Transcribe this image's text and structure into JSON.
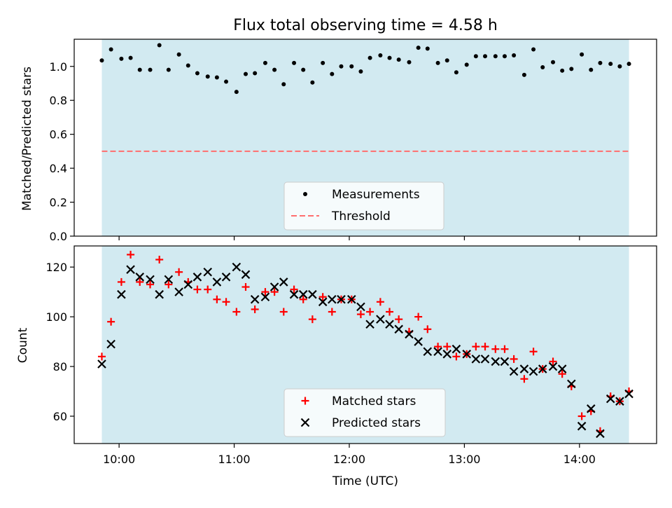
{
  "title": "Flux total observing time = 4.58 h",
  "colors": {
    "band": "#add8e6",
    "measurement": "#000000",
    "threshold": "#ff6e6e",
    "matched": "#ff0000",
    "predicted": "#000000"
  },
  "chart_data": [
    {
      "type": "scatter",
      "panel": "top",
      "ylabel": "Matched/Predicted stars",
      "xlabel": "",
      "ylim": [
        0,
        1.16
      ],
      "yticks": [
        0.0,
        0.2,
        0.4,
        0.6,
        0.8,
        1.0
      ],
      "ytick_labels": [
        "0.0",
        "0.2",
        "0.4",
        "0.6",
        "0.8",
        "1.0"
      ],
      "xlim_hours": [
        9.61,
        14.67
      ],
      "shaded_span_hours": [
        9.85,
        14.43
      ],
      "legend": {
        "placement": "lower-center",
        "entries": [
          {
            "label": "Measurements",
            "marker": "dot"
          },
          {
            "label": "Threshold",
            "marker": "dashed-line"
          }
        ]
      },
      "threshold": 0.5,
      "series": [
        {
          "name": "Measurements",
          "x": [
            9.85,
            9.93,
            10.02,
            10.1,
            10.18,
            10.27,
            10.35,
            10.43,
            10.52,
            10.6,
            10.68,
            10.77,
            10.85,
            10.93,
            11.02,
            11.1,
            11.18,
            11.27,
            11.35,
            11.43,
            11.52,
            11.6,
            11.68,
            11.77,
            11.85,
            11.93,
            12.02,
            12.1,
            12.18,
            12.27,
            12.35,
            12.43,
            12.52,
            12.6,
            12.68,
            12.77,
            12.85,
            12.93,
            13.02,
            13.1,
            13.18,
            13.27,
            13.35,
            13.43,
            13.52,
            13.6,
            13.68,
            13.77,
            13.85,
            13.93,
            14.02,
            14.1,
            14.18,
            14.27,
            14.35,
            14.43
          ],
          "values": [
            1.035,
            1.1,
            1.045,
            1.05,
            0.98,
            0.98,
            1.125,
            0.98,
            1.07,
            1.005,
            0.96,
            0.94,
            0.935,
            0.91,
            0.85,
            0.955,
            0.96,
            1.02,
            0.98,
            0.895,
            1.02,
            0.98,
            0.905,
            1.02,
            0.955,
            1.0,
            1.0,
            0.97,
            1.05,
            1.065,
            1.05,
            1.04,
            1.025,
            1.11,
            1.105,
            1.02,
            1.035,
            0.965,
            1.01,
            1.06,
            1.06,
            1.06,
            1.06,
            1.065,
            0.95,
            1.1,
            0.995,
            1.025,
            0.975,
            0.985,
            1.07,
            0.98,
            1.02,
            1.015,
            1.0,
            1.015
          ]
        }
      ]
    },
    {
      "type": "scatter",
      "panel": "bottom",
      "title": "",
      "xlabel": "Time (UTC)",
      "ylabel": "Count",
      "ylim": [
        49,
        128.5
      ],
      "yticks": [
        60,
        80,
        100,
        120
      ],
      "ytick_labels": [
        "60",
        "80",
        "100",
        "120"
      ],
      "xlim_hours": [
        9.61,
        14.67
      ],
      "shaded_span_hours": [
        9.85,
        14.43
      ],
      "xticks_hours": [
        10,
        11,
        12,
        13,
        14
      ],
      "xtick_labels": [
        "10:00",
        "11:00",
        "12:00",
        "13:00",
        "14:00"
      ],
      "legend": {
        "placement": "lower-center",
        "entries": [
          {
            "label": "Matched stars",
            "marker": "plus"
          },
          {
            "label": "Predicted stars",
            "marker": "x"
          }
        ]
      },
      "series": [
        {
          "name": "Matched stars",
          "x": [
            9.85,
            9.93,
            10.02,
            10.1,
            10.18,
            10.27,
            10.35,
            10.43,
            10.52,
            10.6,
            10.68,
            10.77,
            10.85,
            10.93,
            11.02,
            11.1,
            11.18,
            11.27,
            11.35,
            11.43,
            11.52,
            11.6,
            11.68,
            11.77,
            11.85,
            11.93,
            12.02,
            12.1,
            12.18,
            12.27,
            12.35,
            12.43,
            12.52,
            12.6,
            12.68,
            12.77,
            12.85,
            12.93,
            13.02,
            13.1,
            13.18,
            13.27,
            13.35,
            13.43,
            13.52,
            13.6,
            13.68,
            13.77,
            13.85,
            13.93,
            14.02,
            14.1,
            14.18,
            14.27,
            14.35,
            14.43
          ],
          "values": [
            84,
            98,
            114,
            125,
            114,
            113,
            123,
            113,
            118,
            114,
            111,
            111,
            107,
            106,
            102,
            112,
            103,
            110,
            110,
            102,
            111,
            107,
            99,
            108,
            102,
            107,
            107,
            101,
            102,
            106,
            102,
            99,
            94,
            100,
            95,
            88,
            88,
            84,
            85,
            88,
            88,
            87,
            87,
            83,
            75,
            86,
            79,
            82,
            77,
            72,
            60,
            62,
            54,
            68,
            66,
            70
          ]
        },
        {
          "name": "Predicted stars",
          "x": [
            9.85,
            9.93,
            10.02,
            10.1,
            10.18,
            10.27,
            10.35,
            10.43,
            10.52,
            10.6,
            10.68,
            10.77,
            10.85,
            10.93,
            11.02,
            11.1,
            11.18,
            11.27,
            11.35,
            11.43,
            11.52,
            11.6,
            11.68,
            11.77,
            11.85,
            11.93,
            12.02,
            12.1,
            12.18,
            12.27,
            12.35,
            12.43,
            12.52,
            12.6,
            12.68,
            12.77,
            12.85,
            12.93,
            13.02,
            13.1,
            13.18,
            13.27,
            13.35,
            13.43,
            13.52,
            13.6,
            13.68,
            13.77,
            13.85,
            13.93,
            14.02,
            14.1,
            14.18,
            14.27,
            14.35,
            14.43
          ],
          "values": [
            81,
            89,
            109,
            119,
            116,
            115,
            109,
            115,
            110,
            113,
            116,
            118,
            114,
            116,
            120,
            117,
            107,
            108,
            112,
            114,
            109,
            109,
            109,
            106,
            107,
            107,
            107,
            104,
            97,
            99,
            97,
            95,
            93,
            90,
            86,
            86,
            85,
            87,
            85,
            83,
            83,
            82,
            82,
            78,
            79,
            78,
            79,
            80,
            79,
            73,
            56,
            63,
            53,
            67,
            66,
            69
          ]
        }
      ]
    }
  ]
}
